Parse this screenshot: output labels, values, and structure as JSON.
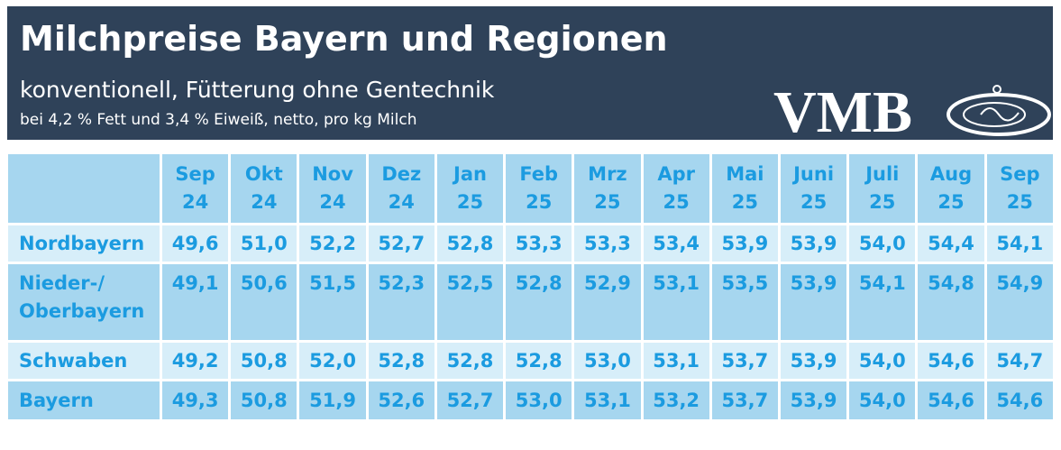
{
  "header": {
    "title": "Milchpreise Bayern und Regionen",
    "subtitle": "konventionell, Fütterung ohne Gentechnik",
    "note": "bei 4,2 % Fett und 3,4 % Eiweiß, netto, pro kg Milch",
    "logo": "VMB"
  },
  "table": {
    "columns": [
      [
        "Sep",
        "24"
      ],
      [
        "Okt",
        "24"
      ],
      [
        "Nov",
        "24"
      ],
      [
        "Dez",
        "24"
      ],
      [
        "Jan",
        "25"
      ],
      [
        "Feb",
        "25"
      ],
      [
        "Mrz",
        "25"
      ],
      [
        "Apr",
        "25"
      ],
      [
        "Mai",
        "25"
      ],
      [
        "Juni",
        "25"
      ],
      [
        "Juli",
        "25"
      ],
      [
        "Aug",
        "25"
      ],
      [
        "Sep",
        "25"
      ]
    ],
    "rows": [
      {
        "label": [
          "Nordbayern"
        ],
        "values": [
          "49,6",
          "51,0",
          "52,2",
          "52,7",
          "52,8",
          "53,3",
          "53,3",
          "53,4",
          "53,9",
          "53,9",
          "54,0",
          "54,4",
          "54,1"
        ]
      },
      {
        "label": [
          "Nieder-/",
          "Oberbayern"
        ],
        "values": [
          "49,1",
          "50,6",
          "51,5",
          "52,3",
          "52,5",
          "52,8",
          "52,9",
          "53,1",
          "53,5",
          "53,9",
          "54,1",
          "54,8",
          "54,9"
        ]
      },
      {
        "label": [
          "Schwaben"
        ],
        "values": [
          "49,2",
          "50,8",
          "52,0",
          "52,8",
          "52,8",
          "52,8",
          "53,0",
          "53,1",
          "53,7",
          "53,9",
          "54,0",
          "54,6",
          "54,7"
        ]
      },
      {
        "label": [
          "Bayern"
        ],
        "values": [
          "49,3",
          "50,8",
          "51,9",
          "52,6",
          "52,7",
          "53,0",
          "53,1",
          "53,2",
          "53,7",
          "53,9",
          "54,0",
          "54,6",
          "54,6"
        ]
      }
    ]
  }
}
